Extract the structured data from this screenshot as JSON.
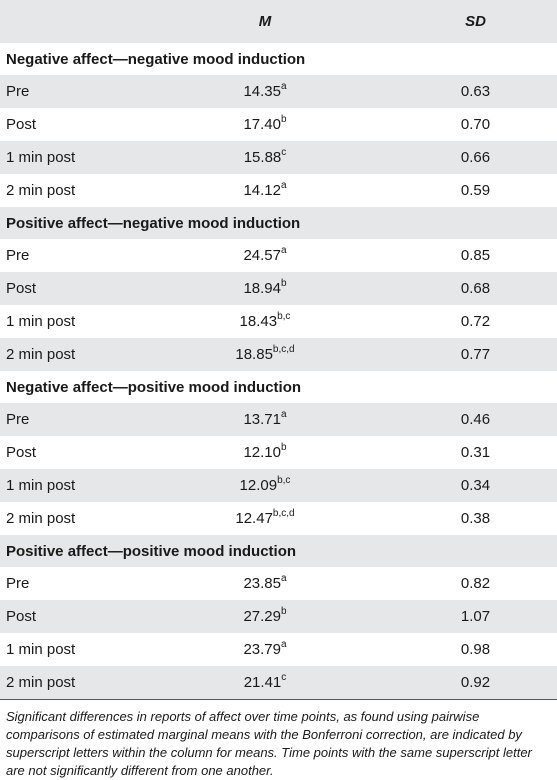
{
  "header": {
    "mean_label": "M",
    "sd_label": "SD"
  },
  "sections": [
    {
      "title": "Negative affect—negative mood induction",
      "rows": [
        {
          "label": "Pre",
          "mean": "14.35",
          "sup": "a",
          "sd": "0.63"
        },
        {
          "label": "Post",
          "mean": "17.40",
          "sup": "b",
          "sd": "0.70"
        },
        {
          "label": "1 min post",
          "mean": "15.88",
          "sup": "c",
          "sd": "0.66"
        },
        {
          "label": "2 min post",
          "mean": "14.12",
          "sup": "a",
          "sd": "0.59"
        }
      ]
    },
    {
      "title": "Positive affect—negative mood induction",
      "rows": [
        {
          "label": "Pre",
          "mean": "24.57",
          "sup": "a",
          "sd": "0.85"
        },
        {
          "label": "Post",
          "mean": "18.94",
          "sup": "b",
          "sd": "0.68"
        },
        {
          "label": "1 min post",
          "mean": "18.43",
          "sup": "b,c",
          "sd": "0.72"
        },
        {
          "label": "2 min post",
          "mean": "18.85",
          "sup": "b,c,d",
          "sd": "0.77"
        }
      ]
    },
    {
      "title": "Negative affect—positive mood induction",
      "rows": [
        {
          "label": "Pre",
          "mean": "13.71",
          "sup": "a",
          "sd": "0.46"
        },
        {
          "label": "Post",
          "mean": "12.10",
          "sup": "b",
          "sd": "0.31"
        },
        {
          "label": "1 min post",
          "mean": "12.09",
          "sup": "b,c",
          "sd": "0.34"
        },
        {
          "label": "2 min post",
          "mean": "12.47",
          "sup": "b,c,d",
          "sd": "0.38"
        }
      ]
    },
    {
      "title": "Positive affect—positive mood induction",
      "rows": [
        {
          "label": "Pre",
          "mean": "23.85",
          "sup": "a",
          "sd": "0.82"
        },
        {
          "label": "Post",
          "mean": "27.29",
          "sup": "b",
          "sd": "1.07"
        },
        {
          "label": "1 min post",
          "mean": "23.79",
          "sup": "a",
          "sd": "0.98"
        },
        {
          "label": "2 min post",
          "mean": "21.41",
          "sup": "c",
          "sd": "0.92"
        }
      ]
    }
  ],
  "note": "Significant differences in reports of affect over time points, as found using pairwise comparisons of estimated marginal means with the Bonferroni correction, are indicated by superscript letters within the column for means. Time points with the same superscript letter are not significantly different from one another.",
  "colors": {
    "shade": "#e6e7e8",
    "text": "#1a1a1a"
  }
}
